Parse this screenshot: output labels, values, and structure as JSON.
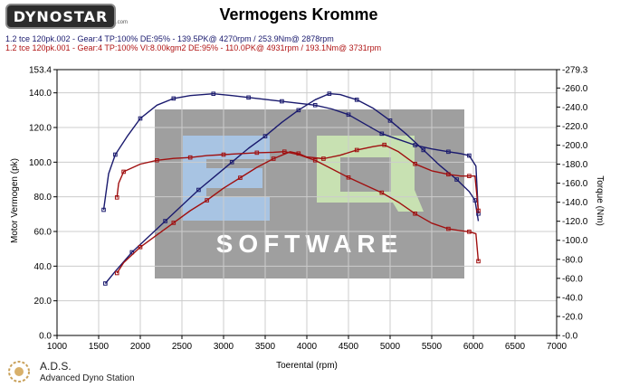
{
  "brand": {
    "logo_text": "DYNOSTAR",
    "logo_sub": ".com"
  },
  "header": {
    "title": "Vermogens Kromme"
  },
  "runs": [
    {
      "line": "1.2 tce 120pk.002 - Gear:4 TP:100% DE:95%   - 139.5PK@ 4270rpm / 253.9Nm@ 2878rpm",
      "color": "#1a1a6e"
    },
    {
      "line": "1.2 tce 120pk.001 - Gear:4 TP:100% VI:8.00kgm2 DE:95%   - 110.0PK@ 4931rpm / 193.1Nm@ 3731rpm",
      "color": "#b01515"
    }
  ],
  "watermark": {
    "text": "SOFTWARE",
    "letters": "EQ"
  },
  "footer": {
    "name": "A.D.S.",
    "subtitle": "Advanced Dyno Station"
  },
  "chart_data": {
    "type": "line",
    "title": "Vermogens Kromme",
    "xlabel": "Toerental (rpm)",
    "ylabel_left": "Motor Vermogen (pk)",
    "ylabel_right": "Torque (Nm)",
    "xlim": [
      1000,
      7000
    ],
    "ylim_left": [
      0.0,
      153.4
    ],
    "ylim_right": [
      0.0,
      279.3
    ],
    "x_ticks": [
      "1000",
      "1500",
      "2000",
      "2500",
      "3000",
      "3500",
      "4000",
      "4500",
      "5000",
      "5500",
      "6000",
      "6500",
      "7000"
    ],
    "y_left_ticks": [
      {
        "v": 0.0,
        "label": "0.0"
      },
      {
        "v": 20.0,
        "label": "20.0"
      },
      {
        "v": 40.0,
        "label": "40.0"
      },
      {
        "v": 60.0,
        "label": "60.0"
      },
      {
        "v": 80.0,
        "label": "80.0"
      },
      {
        "v": 100.0,
        "label": "100.0"
      },
      {
        "v": 120.0,
        "label": "120.0"
      },
      {
        "v": 140.0,
        "label": "140.0"
      },
      {
        "v": 153.4,
        "label": "153.4"
      }
    ],
    "y_right_ticks": [
      {
        "v": 0.0,
        "label": "0.0"
      },
      {
        "v": 20.0,
        "label": "20.0"
      },
      {
        "v": 40.0,
        "label": "40.0"
      },
      {
        "v": 60.0,
        "label": "60.0"
      },
      {
        "v": 80.0,
        "label": "80.0"
      },
      {
        "v": 100.0,
        "label": "100.0"
      },
      {
        "v": 120.0,
        "label": "120.0"
      },
      {
        "v": 140.0,
        "label": "140.0"
      },
      {
        "v": 160.0,
        "label": "160.0"
      },
      {
        "v": 180.0,
        "label": "180.0"
      },
      {
        "v": 200.0,
        "label": "200.0"
      },
      {
        "v": 220.0,
        "label": "220.0"
      },
      {
        "v": 240.0,
        "label": "240.0"
      },
      {
        "v": 260.0,
        "label": "260.0"
      },
      {
        "v": 279.3,
        "label": "279.3"
      }
    ],
    "grid": true,
    "series": [
      {
        "axis": "left",
        "kind": "power",
        "color": "#1a1a6e",
        "x": [
          1580,
          1700,
          1900,
          2100,
          2300,
          2500,
          2700,
          2900,
          3100,
          3300,
          3500,
          3700,
          3900,
          4100,
          4270,
          4400,
          4600,
          4800,
          5000,
          5200,
          5400,
          5600,
          5800,
          5950,
          6020,
          6060
        ],
        "y": [
          30,
          37,
          48,
          57,
          66,
          75,
          84,
          92,
          100,
          108,
          115,
          123,
          130,
          136,
          139.5,
          139,
          136,
          131,
          124,
          116,
          107,
          98,
          90,
          83,
          78,
          66
        ]
      },
      {
        "axis": "right",
        "kind": "torque",
        "color": "#1a1a6e",
        "x": [
          1560,
          1620,
          1700,
          1850,
          2000,
          2200,
          2400,
          2600,
          2878,
          3100,
          3300,
          3500,
          3700,
          3900,
          4100,
          4300,
          4500,
          4700,
          4900,
          5100,
          5300,
          5500,
          5700,
          5850,
          5950,
          6030,
          6060
        ],
        "y": [
          132,
          170,
          190,
          210,
          228,
          242,
          249,
          252,
          253.9,
          252,
          250,
          248,
          246,
          244,
          242,
          238,
          232,
          222,
          212,
          206,
          200,
          196,
          193,
          191,
          189,
          178,
          128
        ]
      },
      {
        "axis": "left",
        "kind": "power",
        "color": "#a01010",
        "x": [
          1720,
          1800,
          2000,
          2200,
          2400,
          2600,
          2800,
          3000,
          3200,
          3400,
          3600,
          3800,
          3900,
          4000,
          4200,
          4400,
          4600,
          4800,
          4931,
          5100,
          5300,
          5500,
          5700,
          5850,
          5950,
          6020,
          6060
        ],
        "y": [
          36,
          42,
          51,
          58,
          65,
          72,
          78,
          85,
          91,
          97,
          102,
          106,
          105,
          103,
          102,
          104,
          107,
          109,
          110.0,
          106,
          99,
          95,
          93,
          92,
          92,
          92,
          72
        ]
      },
      {
        "axis": "right",
        "kind": "torque",
        "color": "#a01010",
        "x": [
          1720,
          1740,
          1800,
          2000,
          2200,
          2400,
          2600,
          2800,
          3000,
          3200,
          3400,
          3600,
          3731,
          3900,
          4100,
          4300,
          4500,
          4700,
          4900,
          5100,
          5300,
          5500,
          5700,
          5850,
          5950,
          6030,
          6060
        ],
        "y": [
          145,
          160,
          172,
          180,
          184,
          186,
          187,
          189,
          190,
          191,
          192,
          192.5,
          193.1,
          190,
          184,
          175,
          166,
          158,
          150,
          140,
          128,
          118,
          112,
          110,
          109,
          107,
          78
        ]
      }
    ]
  }
}
